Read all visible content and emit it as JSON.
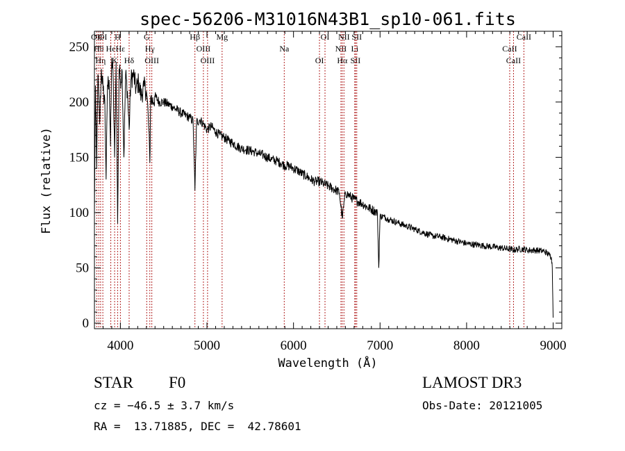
{
  "chart_data": {
    "type": "line",
    "title": "spec-56206-M31016N43B1_sp10-061.fits",
    "xlabel": "Wavelength (Å)",
    "ylabel": "Flux (relative)",
    "xlim": [
      3700,
      9100
    ],
    "ylim": [
      -5,
      264
    ],
    "x_ticks": [
      4000,
      5000,
      6000,
      7000,
      8000,
      9000
    ],
    "y_ticks": [
      0,
      50,
      100,
      150,
      200,
      250
    ],
    "grid": false,
    "series": [
      {
        "name": "flux",
        "x": [
          3700,
          3712,
          3725,
          3740,
          3760,
          3780,
          3800,
          3820,
          3835,
          3850,
          3870,
          3885,
          3900,
          3915,
          3933,
          3950,
          3968,
          3985,
          4000,
          4020,
          4040,
          4060,
          4080,
          4101,
          4120,
          4150,
          4180,
          4210,
          4240,
          4270,
          4300,
          4320,
          4340,
          4350,
          4370,
          4400,
          4450,
          4500,
          4550,
          4600,
          4650,
          4700,
          4750,
          4800,
          4840,
          4861,
          4880,
          4920,
          4960,
          5000,
          5050,
          5100,
          5150,
          5200,
          5250,
          5300,
          5350,
          5400,
          5450,
          5500,
          5550,
          5600,
          5650,
          5700,
          5750,
          5800,
          5850,
          5890,
          5950,
          6000,
          6050,
          6100,
          6150,
          6200,
          6250,
          6300,
          6350,
          6400,
          6450,
          6500,
          6530,
          6563,
          6600,
          6650,
          6700,
          6750,
          6800,
          6850,
          6900,
          6950,
          6970,
          6985,
          7000,
          7050,
          7100,
          7200,
          7300,
          7400,
          7500,
          7600,
          7700,
          7800,
          7900,
          8000,
          8100,
          8200,
          8300,
          8400,
          8498,
          8542,
          8600,
          8662,
          8700,
          8800,
          8900,
          8950,
          8980,
          8990,
          9000
        ],
        "values": [
          100,
          215,
          140,
          225,
          180,
          230,
          210,
          200,
          130,
          215,
          220,
          160,
          240,
          225,
          150,
          235,
          90,
          230,
          220,
          228,
          150,
          225,
          210,
          175,
          220,
          225,
          212,
          218,
          205,
          214,
          210,
          190,
          145,
          205,
          200,
          205,
          200,
          200,
          198,
          196,
          193,
          190,
          188,
          186,
          183,
          120,
          182,
          184,
          180,
          175,
          178,
          173,
          170,
          168,
          165,
          163,
          160,
          158,
          157,
          156,
          155,
          153,
          152,
          150,
          148,
          147,
          145,
          143,
          142,
          140,
          138,
          135,
          133,
          130,
          128,
          128,
          126,
          124,
          122,
          120,
          118,
          95,
          118,
          115,
          112,
          110,
          108,
          105,
          103,
          101,
          99,
          50,
          97,
          96,
          94,
          91,
          88,
          85,
          82,
          79,
          78,
          76,
          74,
          72,
          71,
          70,
          69,
          68,
          67,
          66,
          67,
          67,
          66,
          66,
          65,
          62,
          60,
          50,
          5
        ]
      }
    ],
    "lines": [
      {
        "x": 3727,
        "label": "OII"
      },
      {
        "x": 3750,
        "label": "Hθ"
      },
      {
        "x": 3771,
        "label": "Hη"
      },
      {
        "x": 3797,
        "label": "OI"
      },
      {
        "x": 3889,
        "label": "He"
      },
      {
        "x": 3933,
        "label": "K"
      },
      {
        "x": 3968,
        "label": "H"
      },
      {
        "x": 4000,
        "label": "Hε"
      },
      {
        "x": 4101,
        "label": "Hδ"
      },
      {
        "x": 4304,
        "label": "G"
      },
      {
        "x": 4340,
        "label": "Hγ"
      },
      {
        "x": 4363,
        "label": "OIII"
      },
      {
        "x": 4861,
        "label": "Hβ"
      },
      {
        "x": 4959,
        "label": "OIII"
      },
      {
        "x": 5007,
        "label": "OIII"
      },
      {
        "x": 5175,
        "label": "Mg"
      },
      {
        "x": 5893,
        "label": "Na"
      },
      {
        "x": 6300,
        "label": "OI"
      },
      {
        "x": 6364,
        "label": "OI"
      },
      {
        "x": 6548,
        "label": "NII"
      },
      {
        "x": 6563,
        "label": "Hα"
      },
      {
        "x": 6583,
        "label": "NII"
      },
      {
        "x": 6708,
        "label": "Li"
      },
      {
        "x": 6716,
        "label": "SII"
      },
      {
        "x": 6731,
        "label": "SII"
      },
      {
        "x": 8498,
        "label": "CaII"
      },
      {
        "x": 8542,
        "label": "CaII"
      },
      {
        "x": 8662,
        "label": "CaII"
      }
    ]
  },
  "info": {
    "object_class": "STAR",
    "subclass": "F0",
    "survey": "LAMOST DR3",
    "cz": "cz = −46.5 ± 3.7 km/s",
    "obs_date": "Obs-Date: 20121005",
    "coords": "RA =  13.71885, DEC =  42.78601"
  },
  "colors": {
    "marker_line": "#b22222",
    "axis": "#000000"
  }
}
